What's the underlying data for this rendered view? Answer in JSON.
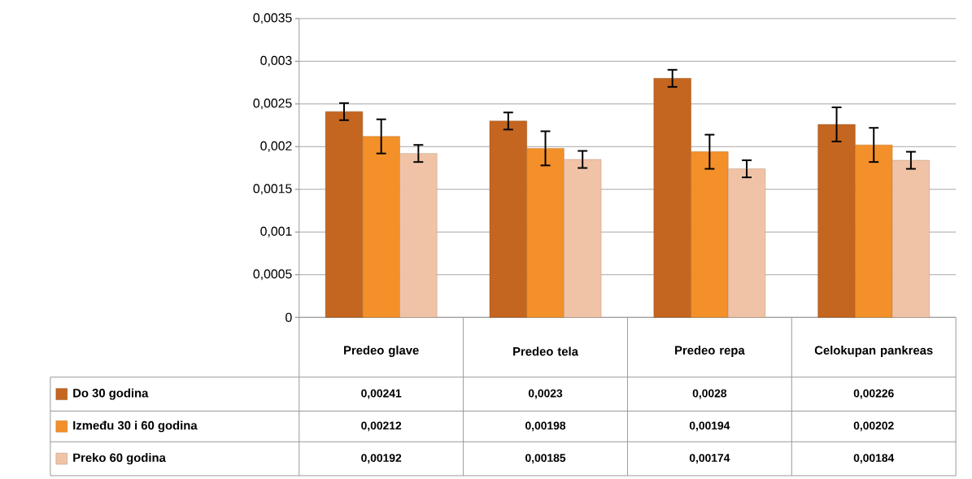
{
  "chart_data": {
    "type": "bar",
    "categories": [
      "Predeo glave",
      "Predeo tela",
      "Predeo repa",
      "Celokupan pankreas"
    ],
    "series": [
      {
        "name": "Do 30 godina",
        "color": "#c4661f",
        "values": [
          0.00241,
          0.0023,
          0.0028,
          0.00226
        ],
        "errors": [
          0.0001,
          0.0001,
          0.0001,
          0.0002
        ],
        "value_labels": [
          "0,00241",
          "0,0023",
          "0,0028",
          "0,00226"
        ]
      },
      {
        "name": "Između 30 i 60 godina",
        "color": "#f3902a",
        "values": [
          0.00212,
          0.00198,
          0.00194,
          0.00202
        ],
        "errors": [
          0.0002,
          0.0002,
          0.0002,
          0.0002
        ],
        "value_labels": [
          "0,00212",
          "0,00198",
          "0,00194",
          "0,00202"
        ]
      },
      {
        "name": "Preko 60 godina",
        "color": "#f1c3a6",
        "values": [
          0.00192,
          0.00185,
          0.00174,
          0.00184
        ],
        "errors": [
          0.0001,
          0.0001,
          0.0001,
          0.0001
        ],
        "value_labels": [
          "0,00192",
          "0,00185",
          "0,00174",
          "0,00184"
        ]
      }
    ],
    "ylim": [
      0,
      0.0035
    ],
    "yticks": [
      {
        "value": 0,
        "label": "0"
      },
      {
        "value": 0.0005,
        "label": "0,0005"
      },
      {
        "value": 0.001,
        "label": "0,001"
      },
      {
        "value": 0.0015,
        "label": "0,0015"
      },
      {
        "value": 0.002,
        "label": "0,002"
      },
      {
        "value": 0.0025,
        "label": "0,0025"
      },
      {
        "value": 0.003,
        "label": "0,003"
      },
      {
        "value": 0.0035,
        "label": "0,0035"
      }
    ],
    "grid": "y",
    "legend": "bottom"
  }
}
